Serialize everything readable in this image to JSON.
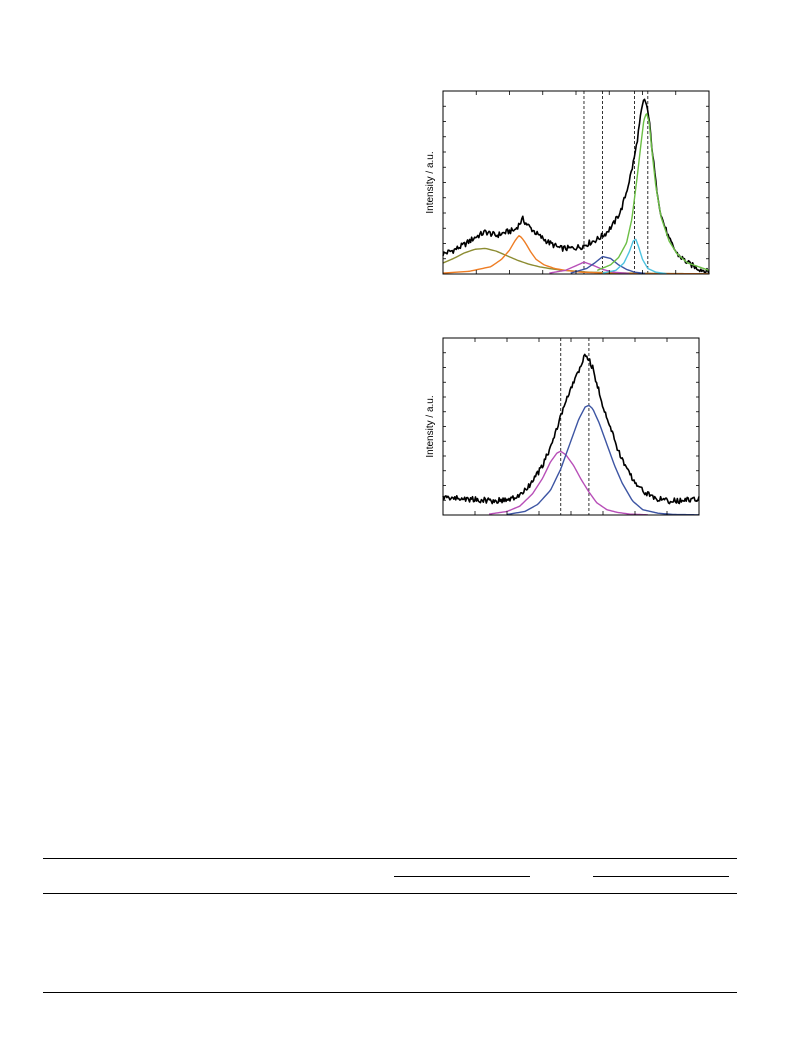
{
  "chart_data": [
    {
      "type": "line",
      "title": "",
      "xlabel": "",
      "ylabel": "Intensity / a.u.",
      "xlim": [
        0,
        100
      ],
      "ylim": [
        0,
        100
      ],
      "grid": false,
      "legend": "none",
      "reference_lines_x": [
        53,
        60,
        72,
        77
      ],
      "series": [
        {
          "role": "measured",
          "color": "#000000",
          "x": [
            0,
            4,
            8,
            12,
            16,
            20,
            24,
            27,
            29,
            30,
            31,
            33,
            36,
            40,
            44,
            48,
            52,
            55,
            58,
            61,
            64,
            67,
            69,
            71,
            72.5,
            73.5,
            74.5,
            75.5,
            76.5,
            77.5,
            78.5,
            80,
            82,
            85,
            88,
            92,
            96,
            100
          ],
          "y": [
            11,
            13,
            16,
            20,
            23,
            21,
            23,
            24,
            28,
            30,
            28,
            25,
            21,
            17,
            14,
            14,
            15,
            17,
            19,
            22,
            27,
            35,
            45,
            57,
            68,
            78,
            88,
            95,
            93,
            84,
            70,
            50,
            32,
            19,
            11,
            6,
            3,
            1
          ]
        },
        {
          "role": "fit-component",
          "color": "#8c8c32",
          "x": [
            0,
            4,
            8,
            12,
            16,
            20,
            24,
            28,
            32,
            36,
            40,
            45,
            50,
            55,
            60,
            70,
            80,
            100
          ],
          "y": [
            6,
            8.5,
            11.5,
            13.5,
            14,
            12.5,
            10,
            7.5,
            5.5,
            4,
            3,
            2,
            1.5,
            1,
            0.8,
            0.5,
            0.3,
            0.1
          ]
        },
        {
          "role": "fit-component",
          "color": "#ee7d24",
          "x": [
            0,
            10,
            18,
            22,
            25,
            27,
            28.5,
            29.5,
            31,
            33,
            35,
            38,
            42,
            46,
            52,
            60,
            70,
            100
          ],
          "y": [
            0.5,
            1.5,
            4,
            8,
            13,
            18,
            21,
            20,
            17,
            12,
            8,
            5,
            3,
            2,
            1,
            0.6,
            0.3,
            0.1
          ]
        },
        {
          "role": "fit-component",
          "color": "#b84fb8",
          "x": [
            40,
            46,
            50,
            53,
            56,
            60,
            64,
            70
          ],
          "y": [
            0.5,
            2,
            4.5,
            6.5,
            5,
            2.5,
            1,
            0.3
          ]
        },
        {
          "role": "fit-component",
          "color": "#3d55a3",
          "x": [
            48,
            54,
            57,
            60,
            63,
            66,
            69,
            72,
            76
          ],
          "y": [
            0.5,
            3,
            6,
            9.5,
            8.5,
            5,
            2.5,
            1,
            0.3
          ]
        },
        {
          "role": "fit-component",
          "color": "#4ec3e0",
          "x": [
            60,
            65,
            68,
            70,
            71.5,
            72.5,
            73.5,
            75,
            77,
            80,
            84
          ],
          "y": [
            0.5,
            2,
            6,
            12,
            18,
            19,
            15,
            8,
            3,
            1,
            0.2
          ]
        },
        {
          "role": "fit-component",
          "color": "#6bbe45",
          "x": [
            58,
            63,
            66,
            69,
            71,
            73,
            74.5,
            75.5,
            76.5,
            77.5,
            78.5,
            80,
            82,
            85,
            88,
            92,
            96,
            100
          ],
          "y": [
            2,
            5,
            9,
            17,
            30,
            53,
            72,
            84,
            88,
            83,
            68,
            48,
            31,
            18,
            11,
            6,
            4,
            2
          ]
        }
      ]
    },
    {
      "type": "line",
      "title": "",
      "xlabel": "",
      "ylabel": "Intensity / a.u.",
      "xlim": [
        0,
        100
      ],
      "ylim": [
        0,
        100
      ],
      "grid": false,
      "legend": "none",
      "reference_lines_x": [
        46,
        57
      ],
      "series": [
        {
          "role": "measured",
          "color": "#000000",
          "x": [
            0,
            10,
            20,
            27,
            31,
            35,
            39,
            43,
            46,
            49,
            52,
            54,
            55.5,
            57,
            58.5,
            60,
            62,
            65,
            68,
            72,
            77,
            82,
            87,
            92,
            100
          ],
          "y": [
            10,
            9,
            8,
            9,
            12,
            19,
            28,
            42,
            56,
            68,
            78,
            85,
            90,
            88,
            83,
            75,
            64,
            51,
            38,
            25,
            15,
            10,
            8,
            8,
            9
          ]
        },
        {
          "role": "fit-component",
          "color": "#b84fb8",
          "x": [
            18,
            25,
            30,
            35,
            39,
            42,
            44.5,
            46,
            48,
            51,
            54,
            57,
            60,
            64,
            68,
            73,
            80
          ],
          "y": [
            0.5,
            2,
            5,
            12,
            21,
            30,
            35,
            36,
            34,
            28,
            20,
            13,
            7,
            3,
            1.5,
            0.5,
            0.1
          ]
        },
        {
          "role": "fit-component",
          "color": "#3d55a3",
          "x": [
            25,
            32,
            37,
            42,
            46,
            50,
            53,
            55.5,
            57,
            58.5,
            61,
            64,
            67,
            70,
            74,
            78,
            84,
            90,
            100
          ],
          "y": [
            0.3,
            2,
            6,
            14,
            26,
            42,
            54,
            61,
            62,
            60,
            52,
            40,
            28,
            18,
            8,
            3,
            1,
            0.3,
            0.1
          ]
        }
      ]
    }
  ]
}
